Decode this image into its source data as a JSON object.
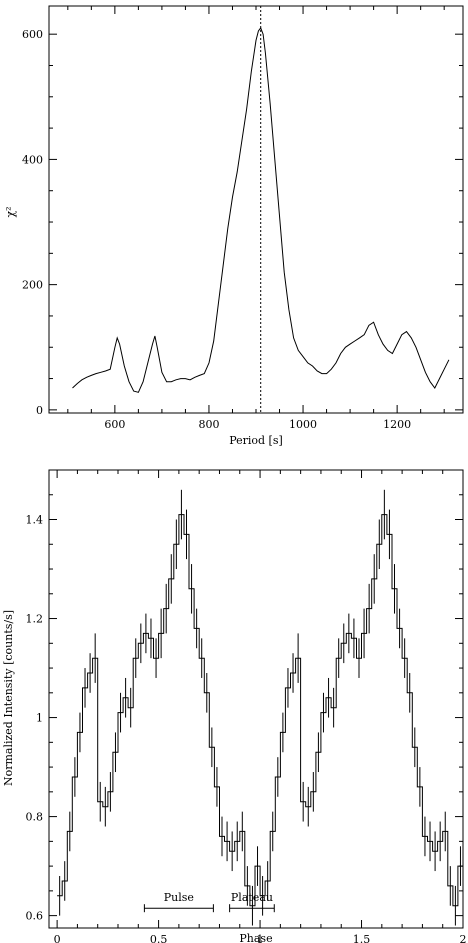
{
  "chart_data": [
    {
      "type": "line",
      "xlabel": "Period [s]",
      "ylabel": "χ²",
      "xlim": [
        460,
        1340
      ],
      "ylim": [
        -5,
        645
      ],
      "xticks": [
        600,
        800,
        1000,
        1200
      ],
      "yticks": [
        0,
        200,
        400,
        600
      ],
      "grid": false,
      "marker_line": {
        "x": 910,
        "style": "dotted"
      },
      "series": [
        {
          "x": [
            510,
            520,
            530,
            540,
            550,
            560,
            570,
            580,
            590,
            600,
            605,
            610,
            620,
            630,
            640,
            650,
            660,
            670,
            680,
            685,
            690,
            700,
            710,
            720,
            730,
            740,
            750,
            760,
            770,
            780,
            790,
            800,
            810,
            820,
            830,
            840,
            850,
            860,
            870,
            880,
            890,
            900,
            905,
            910,
            915,
            920,
            930,
            940,
            950,
            960,
            970,
            980,
            990,
            1000,
            1010,
            1020,
            1030,
            1040,
            1050,
            1060,
            1070,
            1080,
            1090,
            1100,
            1110,
            1120,
            1130,
            1140,
            1150,
            1160,
            1170,
            1180,
            1190,
            1200,
            1210,
            1220,
            1230,
            1240,
            1250,
            1260,
            1270,
            1280,
            1290,
            1300,
            1310
          ],
          "y": [
            35,
            42,
            48,
            52,
            55,
            58,
            60,
            62,
            65,
            100,
            115,
            105,
            70,
            45,
            30,
            28,
            45,
            75,
            105,
            118,
            100,
            60,
            45,
            45,
            48,
            50,
            50,
            48,
            52,
            55,
            58,
            75,
            110,
            170,
            230,
            290,
            340,
            380,
            430,
            480,
            540,
            590,
            605,
            610,
            600,
            570,
            490,
            400,
            310,
            220,
            160,
            115,
            95,
            85,
            75,
            70,
            62,
            58,
            58,
            65,
            75,
            90,
            100,
            105,
            110,
            115,
            120,
            135,
            140,
            120,
            105,
            95,
            90,
            105,
            120,
            125,
            115,
            100,
            80,
            60,
            45,
            35,
            50,
            65,
            80
          ]
        }
      ]
    },
    {
      "type": "line",
      "xlabel": "Phase",
      "ylabel": "Normalized Intensity [counts/s]",
      "xlim": [
        -0.04,
        2.0
      ],
      "ylim": [
        0.575,
        1.5
      ],
      "xticks": [
        0,
        0.5,
        1,
        1.5,
        2
      ],
      "yticks": [
        0.6,
        0.8,
        1,
        1.2,
        1.4
      ],
      "grid": false,
      "step": true,
      "phase_bins": [
        0,
        0.025,
        0.05,
        0.075,
        0.1,
        0.125,
        0.15,
        0.175,
        0.2,
        0.225,
        0.25,
        0.275,
        0.3,
        0.325,
        0.35,
        0.375,
        0.4,
        0.425,
        0.45,
        0.475,
        0.5,
        0.525,
        0.55,
        0.575,
        0.6,
        0.625,
        0.65,
        0.675,
        0.7,
        0.725,
        0.75,
        0.775,
        0.8,
        0.825,
        0.85,
        0.875,
        0.9,
        0.925,
        0.95,
        0.975
      ],
      "values": [
        0.64,
        0.67,
        0.77,
        0.88,
        0.97,
        1.06,
        1.09,
        1.12,
        0.83,
        0.82,
        0.85,
        0.93,
        1.01,
        1.04,
        1.02,
        1.12,
        1.15,
        1.17,
        1.16,
        1.12,
        1.17,
        1.22,
        1.28,
        1.35,
        1.41,
        1.37,
        1.26,
        1.18,
        1.12,
        1.05,
        0.94,
        0.86,
        0.76,
        0.75,
        0.73,
        0.75,
        0.77,
        0.66,
        0.62,
        0.7
      ],
      "errors": [
        0.04,
        0.04,
        0.04,
        0.04,
        0.04,
        0.04,
        0.04,
        0.05,
        0.04,
        0.04,
        0.04,
        0.04,
        0.04,
        0.04,
        0.04,
        0.04,
        0.04,
        0.04,
        0.04,
        0.04,
        0.05,
        0.05,
        0.05,
        0.05,
        0.05,
        0.05,
        0.05,
        0.04,
        0.04,
        0.04,
        0.04,
        0.04,
        0.04,
        0.04,
        0.04,
        0.04,
        0.04,
        0.04,
        0.04,
        0.04
      ],
      "annotations": [
        {
          "label": "Pulse",
          "x_start": 0.43,
          "x_end": 0.77
        },
        {
          "label": "Plateau",
          "x_start": 0.85,
          "x_end": 1.07
        }
      ]
    }
  ]
}
